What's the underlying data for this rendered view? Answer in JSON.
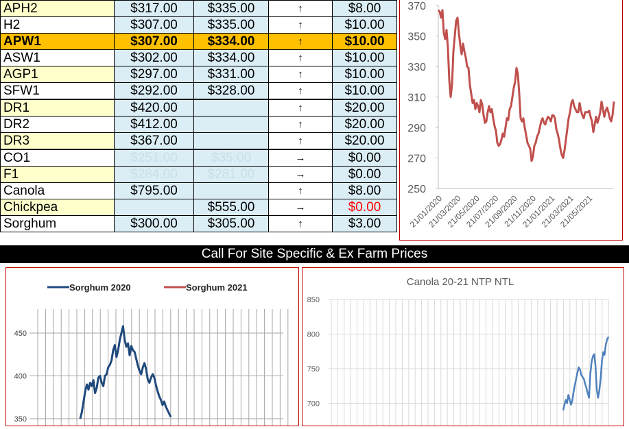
{
  "table": {
    "rows": [
      {
        "name": "APH2",
        "v1": "$317.00",
        "v2": "$335.00",
        "trend": "↑",
        "change": "$8.00"
      },
      {
        "name": "H2",
        "v1": "$307.00",
        "v2": "$335.00",
        "trend": "↑",
        "change": "$10.00"
      },
      {
        "name": "APW1",
        "v1": "$307.00",
        "v2": "$334.00",
        "trend": "↑",
        "change": "$10.00",
        "highlight": true
      },
      {
        "name": "ASW1",
        "v1": "$302.00",
        "v2": "$334.00",
        "trend": "↑",
        "change": "$10.00"
      },
      {
        "name": "AGP1",
        "v1": "$297.00",
        "v2": "$331.00",
        "trend": "↑",
        "change": "$10.00"
      },
      {
        "name": "SFW1",
        "v1": "$292.00",
        "v2": "$328.00",
        "trend": "↑",
        "change": "$10.00"
      },
      {
        "name": "DR1",
        "v1": "$420.00",
        "v2": "",
        "trend": "↑",
        "change": "$20.00"
      },
      {
        "name": "DR2",
        "v1": "$412.00",
        "v2": "",
        "trend": "↑",
        "change": "$20.00"
      },
      {
        "name": "DR3",
        "v1": "$367.00",
        "v2": "",
        "trend": "↑",
        "change": "$20.00"
      },
      {
        "name": "CO1",
        "v1": "$251.00",
        "v2": "$35.00",
        "trend": "→",
        "change": "$0.00",
        "ghost": true
      },
      {
        "name": "F1",
        "v1": "$284.00",
        "v2": "$281.00",
        "trend": "→",
        "change": "$0.00",
        "ghost": true
      },
      {
        "name": "Canola",
        "v1": "$795.00",
        "v2": "",
        "trend": "↑",
        "change": "$8.00"
      },
      {
        "name": "Chickpea",
        "v1": "",
        "v2": "$555.00",
        "trend": "→",
        "change": "$0.00",
        "negative": true
      },
      {
        "name": "Sorghum",
        "v1": "$300.00",
        "v2": "$305.00",
        "trend": "↑",
        "change": "$3.00"
      }
    ]
  },
  "banner": {
    "text": "Call For Site Specific & Ex Farm Prices"
  },
  "colors": {
    "price_line": "#c0504d",
    "sorghum_2020": "#1f497d",
    "sorghum_2021": "#c0504d",
    "canola": "#4f81bd",
    "highlight": "#ffc000"
  },
  "chart_data": [
    {
      "type": "line",
      "title": "",
      "ylim": [
        250,
        370
      ],
      "yticks": [
        "250",
        "270",
        "290",
        "310",
        "330",
        "350",
        "370"
      ],
      "xticks": [
        "21/01/2020",
        "21/03/2020",
        "21/05/2020",
        "21/07/2020",
        "21/09/2020",
        "21/11/2020",
        "21/01/2021",
        "21/03/2021",
        "21/05/2021"
      ],
      "x": [
        0,
        1,
        2,
        3,
        4,
        5,
        6,
        7,
        8,
        9,
        10,
        11,
        12,
        13,
        14,
        15,
        16,
        17,
        18,
        19,
        20,
        21,
        22,
        23,
        24,
        25,
        26,
        27,
        28,
        29,
        30,
        31,
        32,
        33,
        34,
        35,
        36,
        37,
        38,
        39,
        40,
        41,
        42,
        43,
        44,
        45,
        46,
        47,
        48,
        49,
        50,
        51,
        52,
        53,
        54,
        55,
        56,
        57,
        58,
        59,
        60,
        61,
        62,
        63,
        64,
        65,
        66,
        67,
        68,
        69,
        70,
        71,
        72,
        73,
        74,
        75,
        76,
        77,
        78,
        79,
        80,
        81,
        82,
        83,
        84,
        85,
        86,
        87,
        88,
        89,
        90,
        91,
        92,
        93,
        94,
        95,
        96,
        97,
        98,
        99,
        100,
        101,
        102,
        103,
        104,
        105,
        106,
        107,
        108,
        109,
        110,
        111,
        112,
        113,
        114,
        115,
        116,
        117,
        118,
        119,
        120,
        121,
        122,
        123,
        124,
        125,
        126,
        127,
        128
      ],
      "series": [
        {
          "values": [
            367,
            366,
            362,
            367,
            352,
            348,
            354,
            342,
            321,
            310,
            318,
            340,
            350,
            360,
            362,
            352,
            344,
            338,
            345,
            340,
            336,
            330,
            329,
            318,
            312,
            306,
            308,
            302,
            306,
            304,
            300,
            308,
            305,
            298,
            293,
            294,
            300,
            304,
            300,
            302,
            296,
            291,
            288,
            280,
            278,
            279,
            282,
            286,
            284,
            290,
            296,
            295,
            302,
            304,
            310,
            316,
            320,
            329,
            325,
            312,
            296,
            294,
            296,
            290,
            285,
            280,
            278,
            276,
            268,
            271,
            278,
            280,
            284,
            286,
            290,
            294,
            296,
            293,
            292,
            295,
            297,
            296,
            294,
            298,
            298,
            296,
            289,
            286,
            282,
            276,
            272,
            270,
            275,
            282,
            289,
            296,
            300,
            306,
            308,
            304,
            302,
            300,
            300,
            306,
            301,
            298,
            296,
            300,
            300,
            300,
            301,
            297,
            294,
            287,
            292,
            297,
            293,
            296,
            300,
            307,
            302,
            297,
            301,
            303,
            300,
            296,
            294,
            298,
            307
          ]
        }
      ]
    },
    {
      "type": "line",
      "title": "",
      "ylim": [
        350,
        450
      ],
      "yticks": [
        "350",
        "400",
        "450"
      ],
      "series": [
        {
          "name": "Sorghum 2020",
          "values": [
            350,
            358,
            370,
            382,
            390,
            384,
            392,
            388,
            395,
            380,
            386,
            398,
            400,
            392,
            388,
            400,
            402,
            410,
            413,
            418,
            430,
            436,
            422,
            430,
            442,
            450,
            458,
            442,
            434,
            438,
            424,
            435,
            430,
            428,
            420,
            412,
            406,
            402,
            410,
            415,
            408,
            396,
            392,
            398,
            402,
            398,
            389,
            382,
            376,
            372,
            366,
            370,
            364,
            360,
            356,
            352
          ]
        },
        {
          "name": "Sorghum 2021",
          "values": []
        }
      ]
    },
    {
      "type": "line",
      "title": "Canola 20-21 NTP NTL",
      "ylim": [
        680,
        850
      ],
      "yticks": [
        "700",
        "750",
        "800",
        "850"
      ],
      "series": [
        {
          "values": [
            690,
            698,
            705,
            700,
            712,
            706,
            698,
            703,
            716,
            726,
            735,
            744,
            752,
            749,
            741,
            738,
            735,
            728,
            722,
            715,
            708,
            742,
            760,
            768,
            771,
            755,
            720,
            708,
            719,
            736,
            762,
            774,
            770,
            785,
            792,
            796
          ]
        }
      ]
    }
  ]
}
